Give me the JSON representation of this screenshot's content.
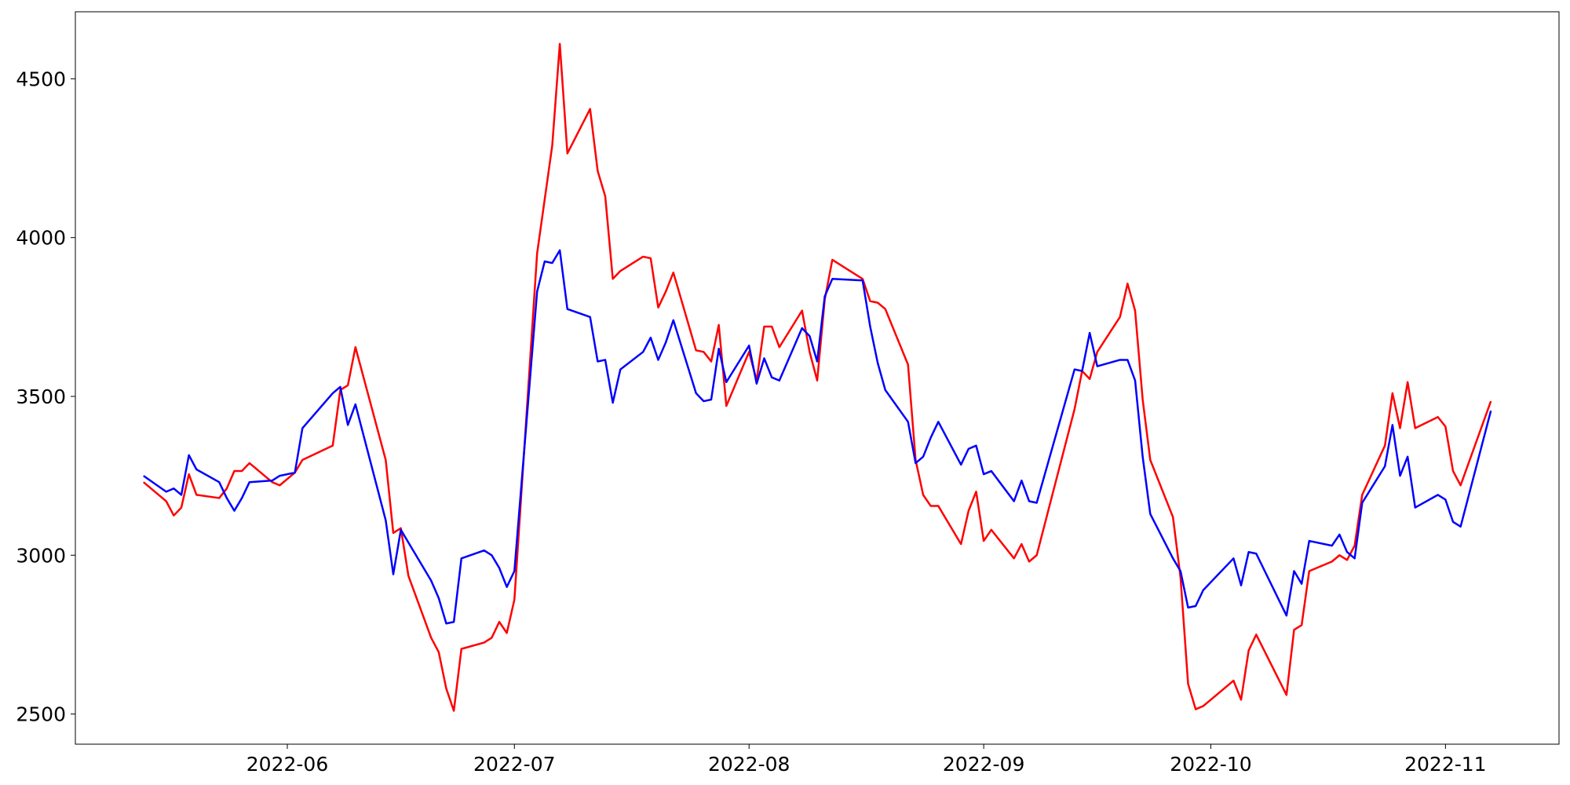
{
  "chart_data": {
    "type": "line",
    "x": [
      "2022-05-13",
      "2022-05-16",
      "2022-05-17",
      "2022-05-18",
      "2022-05-19",
      "2022-05-20",
      "2022-05-23",
      "2022-05-24",
      "2022-05-25",
      "2022-05-26",
      "2022-05-27",
      "2022-05-30",
      "2022-05-31",
      "2022-06-02",
      "2022-06-03",
      "2022-06-07",
      "2022-06-08",
      "2022-06-09",
      "2022-06-10",
      "2022-06-14",
      "2022-06-15",
      "2022-06-16",
      "2022-06-17",
      "2022-06-20",
      "2022-06-21",
      "2022-06-22",
      "2022-06-23",
      "2022-06-24",
      "2022-06-27",
      "2022-06-28",
      "2022-06-29",
      "2022-06-30",
      "2022-07-01",
      "2022-07-04",
      "2022-07-05",
      "2022-07-06",
      "2022-07-07",
      "2022-07-08",
      "2022-07-11",
      "2022-07-12",
      "2022-07-13",
      "2022-07-14",
      "2022-07-15",
      "2022-07-18",
      "2022-07-19",
      "2022-07-20",
      "2022-07-21",
      "2022-07-22",
      "2022-07-25",
      "2022-07-26",
      "2022-07-27",
      "2022-07-28",
      "2022-07-29",
      "2022-08-01",
      "2022-08-02",
      "2022-08-03",
      "2022-08-04",
      "2022-08-05",
      "2022-08-08",
      "2022-08-09",
      "2022-08-10",
      "2022-08-11",
      "2022-08-12",
      "2022-08-16",
      "2022-08-17",
      "2022-08-18",
      "2022-08-19",
      "2022-08-22",
      "2022-08-23",
      "2022-08-24",
      "2022-08-25",
      "2022-08-26",
      "2022-08-29",
      "2022-08-30",
      "2022-08-31",
      "2022-09-01",
      "2022-09-02",
      "2022-09-05",
      "2022-09-06",
      "2022-09-07",
      "2022-09-08",
      "2022-09-13",
      "2022-09-14",
      "2022-09-15",
      "2022-09-16",
      "2022-09-19",
      "2022-09-20",
      "2022-09-21",
      "2022-09-22",
      "2022-09-23",
      "2022-09-26",
      "2022-09-27",
      "2022-09-28",
      "2022-09-29",
      "2022-09-30",
      "2022-10-04",
      "2022-10-05",
      "2022-10-06",
      "2022-10-07",
      "2022-10-11",
      "2022-10-12",
      "2022-10-13",
      "2022-10-14",
      "2022-10-17",
      "2022-10-18",
      "2022-10-19",
      "2022-10-20",
      "2022-10-21",
      "2022-10-24",
      "2022-10-25",
      "2022-10-26",
      "2022-10-27",
      "2022-10-28",
      "2022-10-31",
      "2022-11-01",
      "2022-11-02",
      "2022-11-03",
      "2022-11-07"
    ],
    "series": [
      {
        "color": "#ff0000",
        "values": [
          3230,
          3170,
          3125,
          3150,
          3255,
          3190,
          3180,
          3210,
          3265,
          3265,
          3290,
          3230,
          3220,
          3260,
          3300,
          3345,
          3520,
          3535,
          3655,
          3300,
          3070,
          3085,
          2935,
          2740,
          2695,
          2580,
          2510,
          2705,
          2725,
          2740,
          2790,
          2755,
          2860,
          3950,
          4120,
          4290,
          4610,
          4265,
          4405,
          4210,
          4130,
          3870,
          3895,
          3940,
          3935,
          3780,
          3830,
          3890,
          3645,
          3640,
          3610,
          3725,
          3470,
          3640,
          3550,
          3720,
          3720,
          3655,
          3770,
          3640,
          3550,
          3805,
          3930,
          3870,
          3800,
          3795,
          3775,
          3600,
          3300,
          3190,
          3155,
          3155,
          3035,
          3140,
          3200,
          3045,
          3080,
          2990,
          3035,
          2980,
          3000,
          3460,
          3580,
          3555,
          3640,
          3750,
          3855,
          3770,
          3490,
          3300,
          3120,
          2930,
          2595,
          2515,
          2525,
          2605,
          2545,
          2700,
          2750,
          2560,
          2765,
          2780,
          2950,
          2980,
          3000,
          2985,
          3030,
          3190,
          3345,
          3510,
          3400,
          3545,
          3400,
          3435,
          3405,
          3265,
          3220,
          3485
        ]
      },
      {
        "color": "#0000ff",
        "values": [
          3250,
          3200,
          3210,
          3190,
          3315,
          3270,
          3230,
          3180,
          3140,
          3180,
          3230,
          3235,
          3250,
          3260,
          3400,
          3510,
          3530,
          3410,
          3475,
          3110,
          2940,
          3080,
          3040,
          2920,
          2865,
          2785,
          2790,
          2990,
          3015,
          3000,
          2960,
          2900,
          2950,
          3830,
          3925,
          3920,
          3960,
          3775,
          3750,
          3610,
          3615,
          3480,
          3585,
          3640,
          3685,
          3615,
          3670,
          3740,
          3510,
          3485,
          3490,
          3650,
          3545,
          3660,
          3540,
          3620,
          3560,
          3550,
          3715,
          3690,
          3610,
          3815,
          3870,
          3865,
          3720,
          3605,
          3520,
          3420,
          3290,
          3310,
          3370,
          3420,
          3285,
          3335,
          3345,
          3255,
          3265,
          3170,
          3235,
          3170,
          3165,
          3585,
          3580,
          3700,
          3595,
          3615,
          3615,
          3550,
          3310,
          3130,
          2990,
          2950,
          2835,
          2840,
          2890,
          2990,
          2905,
          3010,
          3005,
          2810,
          2950,
          2910,
          3045,
          3030,
          3065,
          3010,
          2990,
          3165,
          3280,
          3410,
          3250,
          3310,
          3150,
          3190,
          3175,
          3105,
          3090,
          3455
        ]
      }
    ],
    "xlim": [
      "2022-05-04",
      "2022-11-16"
    ],
    "xticks": [
      {
        "value": "2022-06-01",
        "label": "2022-06"
      },
      {
        "value": "2022-07-01",
        "label": "2022-07"
      },
      {
        "value": "2022-08-01",
        "label": "2022-08"
      },
      {
        "value": "2022-09-01",
        "label": "2022-09"
      },
      {
        "value": "2022-10-01",
        "label": "2022-10"
      },
      {
        "value": "2022-11-01",
        "label": "2022-11"
      }
    ],
    "ylim": [
      2405,
      4711
    ],
    "yticks": [
      2500,
      3000,
      3500,
      4000,
      4500
    ],
    "grid": false
  }
}
